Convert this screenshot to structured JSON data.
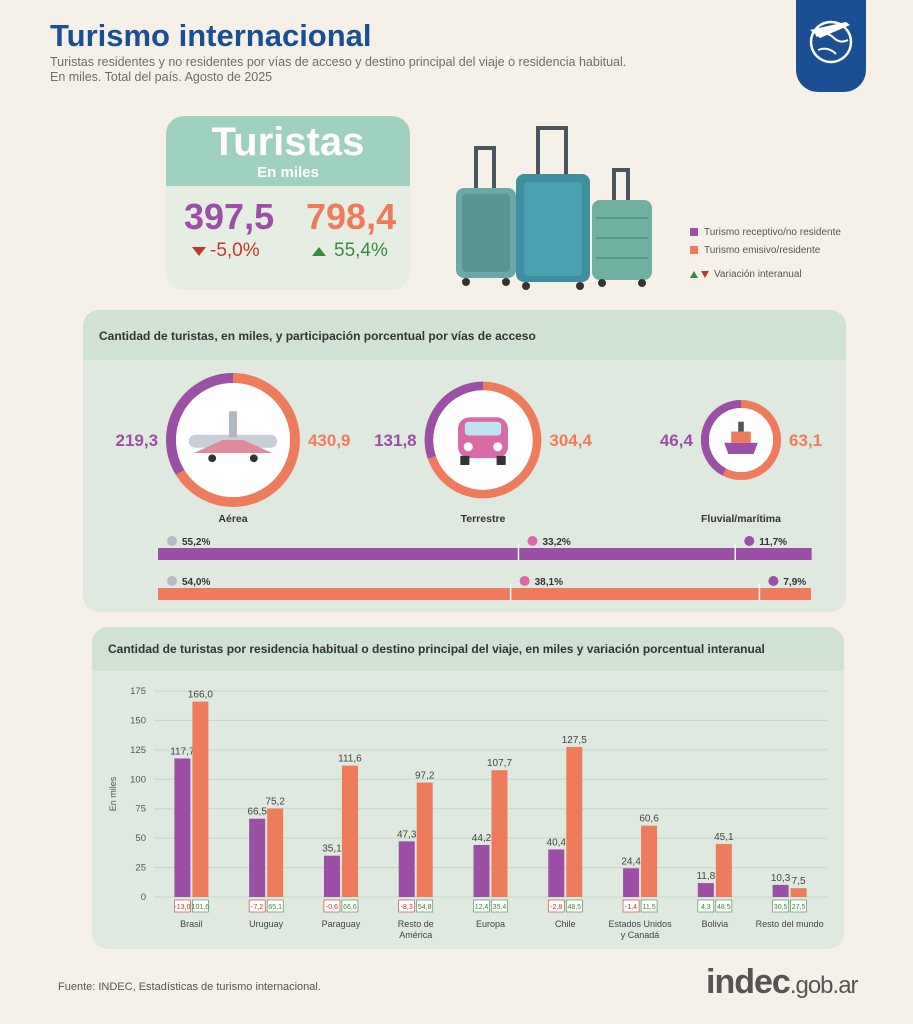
{
  "header": {
    "title": "Turismo internacional",
    "subtitle_line1": "Turistas residentes y no residentes por vías de acceso y destino principal del viaje o residencia habitual.",
    "subtitle_line2": "En miles. Total del país. Agosto de 2025"
  },
  "kpi": {
    "title": "Turistas",
    "unit": "En miles",
    "receptivo_value": "397,5",
    "receptivo_var": "-5,0%",
    "emisivo_value": "798,4",
    "emisivo_var": "55,4%"
  },
  "legend": {
    "receptivo": "Turismo receptivo/no residente",
    "emisivo": "Turismo emisivo/residente",
    "variacion": "Variación interanual"
  },
  "colors": {
    "receptivo": "#9b4fa6",
    "emisivo": "#ee7b5c",
    "brand": "#1b4f93",
    "up": "#3b8a3e",
    "down": "#c0392b"
  },
  "access": {
    "title": "Cantidad de turistas, en miles, y participación porcentual por vías de acceso",
    "modes": [
      {
        "label": "Aérea",
        "icon": "airplane-icon",
        "receptivo": "219,3",
        "emisivo": "430,9",
        "rec_num": 219.3,
        "emi_num": 430.9
      },
      {
        "label": "Terrestre",
        "icon": "car-icon",
        "receptivo": "131,8",
        "emisivo": "304,4",
        "rec_num": 131.8,
        "emi_num": 304.4
      },
      {
        "label": "Fluvial/marítima",
        "icon": "ship-icon",
        "receptivo": "46,4",
        "emisivo": "63,1",
        "rec_num": 46.4,
        "emi_num": 63.1
      }
    ],
    "bar_receptivo": [
      {
        "label": "55,2%",
        "value": 55.2
      },
      {
        "label": "33,2%",
        "value": 33.2
      },
      {
        "label": "11,7%",
        "value": 11.7
      }
    ],
    "bar_emisivo": [
      {
        "label": "54,0%",
        "value": 54.0
      },
      {
        "label": "38,1%",
        "value": 38.1
      },
      {
        "label": "7,9%",
        "value": 7.9
      }
    ]
  },
  "chart_data": {
    "type": "bar",
    "title": "Cantidad de turistas por residencia habitual o destino principal del viaje, en miles y variación porcentual interanual",
    "ylabel": "En miles",
    "ylim": [
      0,
      175
    ],
    "yticks": [
      "0",
      "25",
      "50",
      "75",
      "100",
      "125",
      "150",
      "175"
    ],
    "categories": [
      "Brasil",
      "Uruguay",
      "Paraguay",
      "Resto de América",
      "Europa",
      "Chile",
      "Estados Unidos y Canadá",
      "Bolivia",
      "Resto del mundo"
    ],
    "category_lines": [
      [
        "Brasil"
      ],
      [
        "Uruguay"
      ],
      [
        "Paraguay"
      ],
      [
        "Resto de",
        "América"
      ],
      [
        "Europa"
      ],
      [
        "Chile"
      ],
      [
        "Estados Unidos",
        "y Canadá"
      ],
      [
        "Bolivia"
      ],
      [
        "Resto del mundo"
      ]
    ],
    "series": [
      {
        "name": "Turismo receptivo/no residente",
        "values": [
          117.7,
          66.5,
          35.1,
          47.3,
          44.2,
          40.4,
          24.4,
          11.8,
          10.3
        ],
        "labels": [
          "117,7",
          "66,5",
          "35,1",
          "47,3",
          "44,2",
          "40,4",
          "24,4",
          "11,8",
          "10,3"
        ],
        "variation": [
          "-13,0",
          "-7,2",
          "-0,6",
          "-8,3",
          "12,4",
          "-2,8",
          "-1,4",
          "4,3",
          "30,5"
        ]
      },
      {
        "name": "Turismo emisivo/residente",
        "values": [
          166.0,
          75.2,
          111.6,
          97.2,
          107.7,
          127.5,
          60.6,
          45.1,
          7.5
        ],
        "labels": [
          "166,0",
          "75,2",
          "111,6",
          "97,2",
          "107,7",
          "127,5",
          "60,6",
          "45,1",
          "7,5"
        ],
        "variation": [
          "101,6",
          "65,1",
          "66,6",
          "54,8",
          "35,4",
          "48,5",
          "11,5",
          "48,5",
          "27,5"
        ]
      }
    ]
  },
  "footer": {
    "source": "Fuente: INDEC, Estadísticas de turismo internacional.",
    "logo_main": "indec",
    "logo_suffix": ".gob.ar"
  }
}
